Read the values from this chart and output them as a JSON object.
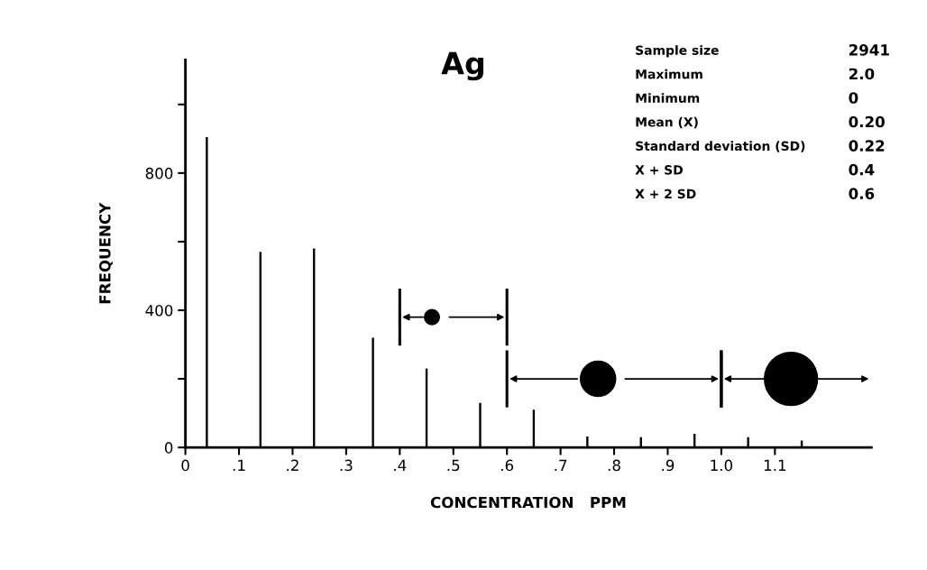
{
  "chart_data": {
    "type": "bar",
    "title": "Ag",
    "xlabel": "CONCENTRATION   PPM",
    "ylabel": "FREQUENCY",
    "x": [
      0.04,
      0.14,
      0.24,
      0.35,
      0.45,
      0.55,
      0.65,
      0.75,
      0.85,
      0.95,
      1.05,
      1.15
    ],
    "series": [
      {
        "color": "#000000",
        "values": [
          905,
          570,
          580,
          320,
          230,
          130,
          110,
          32,
          30,
          40,
          30,
          20
        ]
      },
      {
        "type": "bubble",
        "color": "#000000",
        "x": [
          0.46,
          0.77,
          1.13
        ],
        "values": [
          380,
          200,
          200
        ],
        "sizes": [
          0.08,
          0.44,
          1
        ]
      }
    ],
    "ref_lines": [
      {
        "axis": "x",
        "value": 0.4
      },
      {
        "axis": "x",
        "value": 0.6
      },
      {
        "axis": "x",
        "value": 1.0
      }
    ],
    "annotations": [
      "Sample size",
      "2941",
      "Maximum",
      "2.0",
      "Minimum",
      "0",
      "Mean (X)",
      "0.20",
      "Standard deviation (SD)",
      "0.22",
      "X + SD",
      "0.4",
      "X + 2 SD",
      "0.6"
    ],
    "xlim": [
      0,
      1.28
    ],
    "ylim": [
      0,
      1130
    ],
    "xticks": [
      {
        "value": 0,
        "label": "0"
      },
      {
        "value": 0.1,
        "label": ".1"
      },
      {
        "value": 0.2,
        "label": ".2"
      },
      {
        "value": 0.3,
        "label": ".3"
      },
      {
        "value": 0.4,
        "label": ".4"
      },
      {
        "value": 0.5,
        "label": ".5"
      },
      {
        "value": 0.6,
        "label": ".6"
      },
      {
        "value": 0.7,
        "label": ".7"
      },
      {
        "value": 0.8,
        "label": ".8"
      },
      {
        "value": 0.9,
        "label": ".9"
      },
      {
        "value": 1.0,
        "label": "1.0"
      },
      {
        "value": 1.1,
        "label": "1.1"
      }
    ],
    "yticks": [
      0,
      {
        "value": 200,
        "label": null
      },
      400,
      {
        "value": 600,
        "label": null
      },
      800,
      {
        "value": 1000,
        "label": null
      }
    ],
    "grid": false,
    "legend": false
  }
}
